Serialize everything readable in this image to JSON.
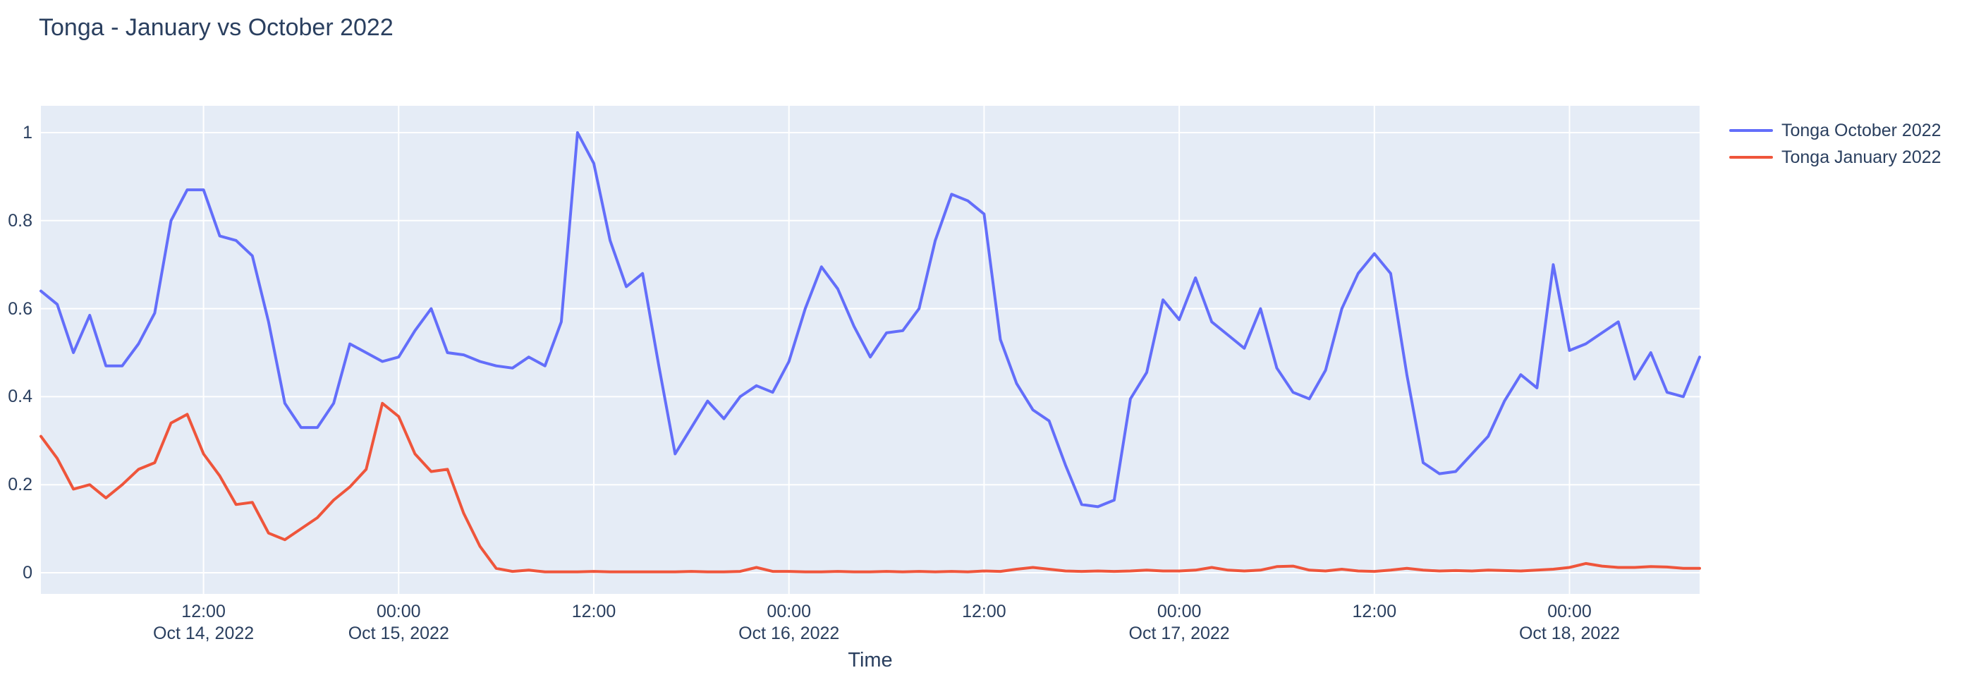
{
  "chart_data": {
    "type": "line",
    "title": "Tonga - January vs October 2022",
    "xlabel": "Time",
    "ylabel": "",
    "x_start": "2022-10-14 02:00",
    "x_end": "2022-10-18 08:00",
    "x_interval_hours": 1,
    "x_total_hours": 102,
    "ylim": [
      -0.05,
      1.06
    ],
    "grid": true,
    "legend_position": "right-top",
    "colors": {
      "plot_background": "#E5ECF6",
      "gridline": "#FFFFFF",
      "text": "#2a3f5f",
      "paper_background": "#FFFFFF"
    },
    "y_ticks": [
      {
        "value": 0,
        "label": "0"
      },
      {
        "value": 0.2,
        "label": "0.2"
      },
      {
        "value": 0.4,
        "label": "0.4"
      },
      {
        "value": 0.6,
        "label": "0.6"
      },
      {
        "value": 0.8,
        "label": "0.8"
      },
      {
        "value": 1,
        "label": "1"
      }
    ],
    "x_ticks": [
      {
        "hour_offset": 10,
        "lines": [
          "12:00",
          "Oct 14, 2022"
        ]
      },
      {
        "hour_offset": 22,
        "lines": [
          "00:00",
          "Oct 15, 2022"
        ]
      },
      {
        "hour_offset": 34,
        "lines": [
          "12:00"
        ]
      },
      {
        "hour_offset": 46,
        "lines": [
          "00:00",
          "Oct 16, 2022"
        ]
      },
      {
        "hour_offset": 58,
        "lines": [
          "12:00"
        ]
      },
      {
        "hour_offset": 70,
        "lines": [
          "00:00",
          "Oct 17, 2022"
        ]
      },
      {
        "hour_offset": 82,
        "lines": [
          "12:00"
        ]
      },
      {
        "hour_offset": 94,
        "lines": [
          "00:00",
          "Oct 18, 2022"
        ]
      }
    ],
    "series": [
      {
        "name": "Tonga October 2022",
        "color": "#636EFA",
        "values": [
          0.64,
          0.61,
          0.5,
          0.585,
          0.47,
          0.47,
          0.52,
          0.59,
          0.8,
          0.87,
          0.87,
          0.765,
          0.755,
          0.72,
          0.57,
          0.385,
          0.33,
          0.33,
          0.385,
          0.52,
          0.5,
          0.48,
          0.49,
          0.55,
          0.6,
          0.5,
          0.495,
          0.48,
          0.47,
          0.465,
          0.49,
          0.47,
          0.57,
          1.0,
          0.93,
          0.755,
          0.65,
          0.68,
          0.47,
          0.27,
          0.33,
          0.39,
          0.35,
          0.4,
          0.425,
          0.41,
          0.48,
          0.6,
          0.695,
          0.645,
          0.56,
          0.49,
          0.545,
          0.55,
          0.6,
          0.755,
          0.86,
          0.845,
          0.815,
          0.53,
          0.43,
          0.37,
          0.345,
          0.245,
          0.155,
          0.15,
          0.165,
          0.395,
          0.455,
          0.62,
          0.575,
          0.67,
          0.57,
          0.54,
          0.51,
          0.6,
          0.465,
          0.41,
          0.395,
          0.46,
          0.6,
          0.68,
          0.725,
          0.68,
          0.45,
          0.25,
          0.225,
          0.23,
          0.27,
          0.31,
          0.39,
          0.45,
          0.42,
          0.7,
          0.505,
          0.52,
          0.545,
          0.57,
          0.44,
          0.5,
          0.41,
          0.4,
          0.49
        ]
      },
      {
        "name": "Tonga January 2022",
        "color": "#EF553B",
        "values": [
          0.31,
          0.26,
          0.19,
          0.2,
          0.17,
          0.2,
          0.235,
          0.25,
          0.34,
          0.36,
          0.27,
          0.22,
          0.155,
          0.16,
          0.09,
          0.075,
          0.1,
          0.125,
          0.165,
          0.195,
          0.235,
          0.385,
          0.355,
          0.27,
          0.23,
          0.235,
          0.135,
          0.06,
          0.01,
          0.003,
          0.006,
          0.002,
          0.002,
          0.002,
          0.003,
          0.002,
          0.002,
          0.002,
          0.002,
          0.002,
          0.003,
          0.002,
          0.002,
          0.003,
          0.012,
          0.003,
          0.003,
          0.002,
          0.002,
          0.003,
          0.002,
          0.002,
          0.003,
          0.002,
          0.003,
          0.002,
          0.003,
          0.002,
          0.004,
          0.003,
          0.008,
          0.012,
          0.008,
          0.004,
          0.003,
          0.004,
          0.003,
          0.004,
          0.006,
          0.004,
          0.004,
          0.006,
          0.012,
          0.006,
          0.004,
          0.006,
          0.014,
          0.015,
          0.006,
          0.004,
          0.008,
          0.004,
          0.003,
          0.006,
          0.01,
          0.006,
          0.004,
          0.005,
          0.004,
          0.006,
          0.005,
          0.004,
          0.006,
          0.008,
          0.012,
          0.021,
          0.015,
          0.012,
          0.012,
          0.014,
          0.013,
          0.01,
          0.01
        ]
      }
    ]
  }
}
